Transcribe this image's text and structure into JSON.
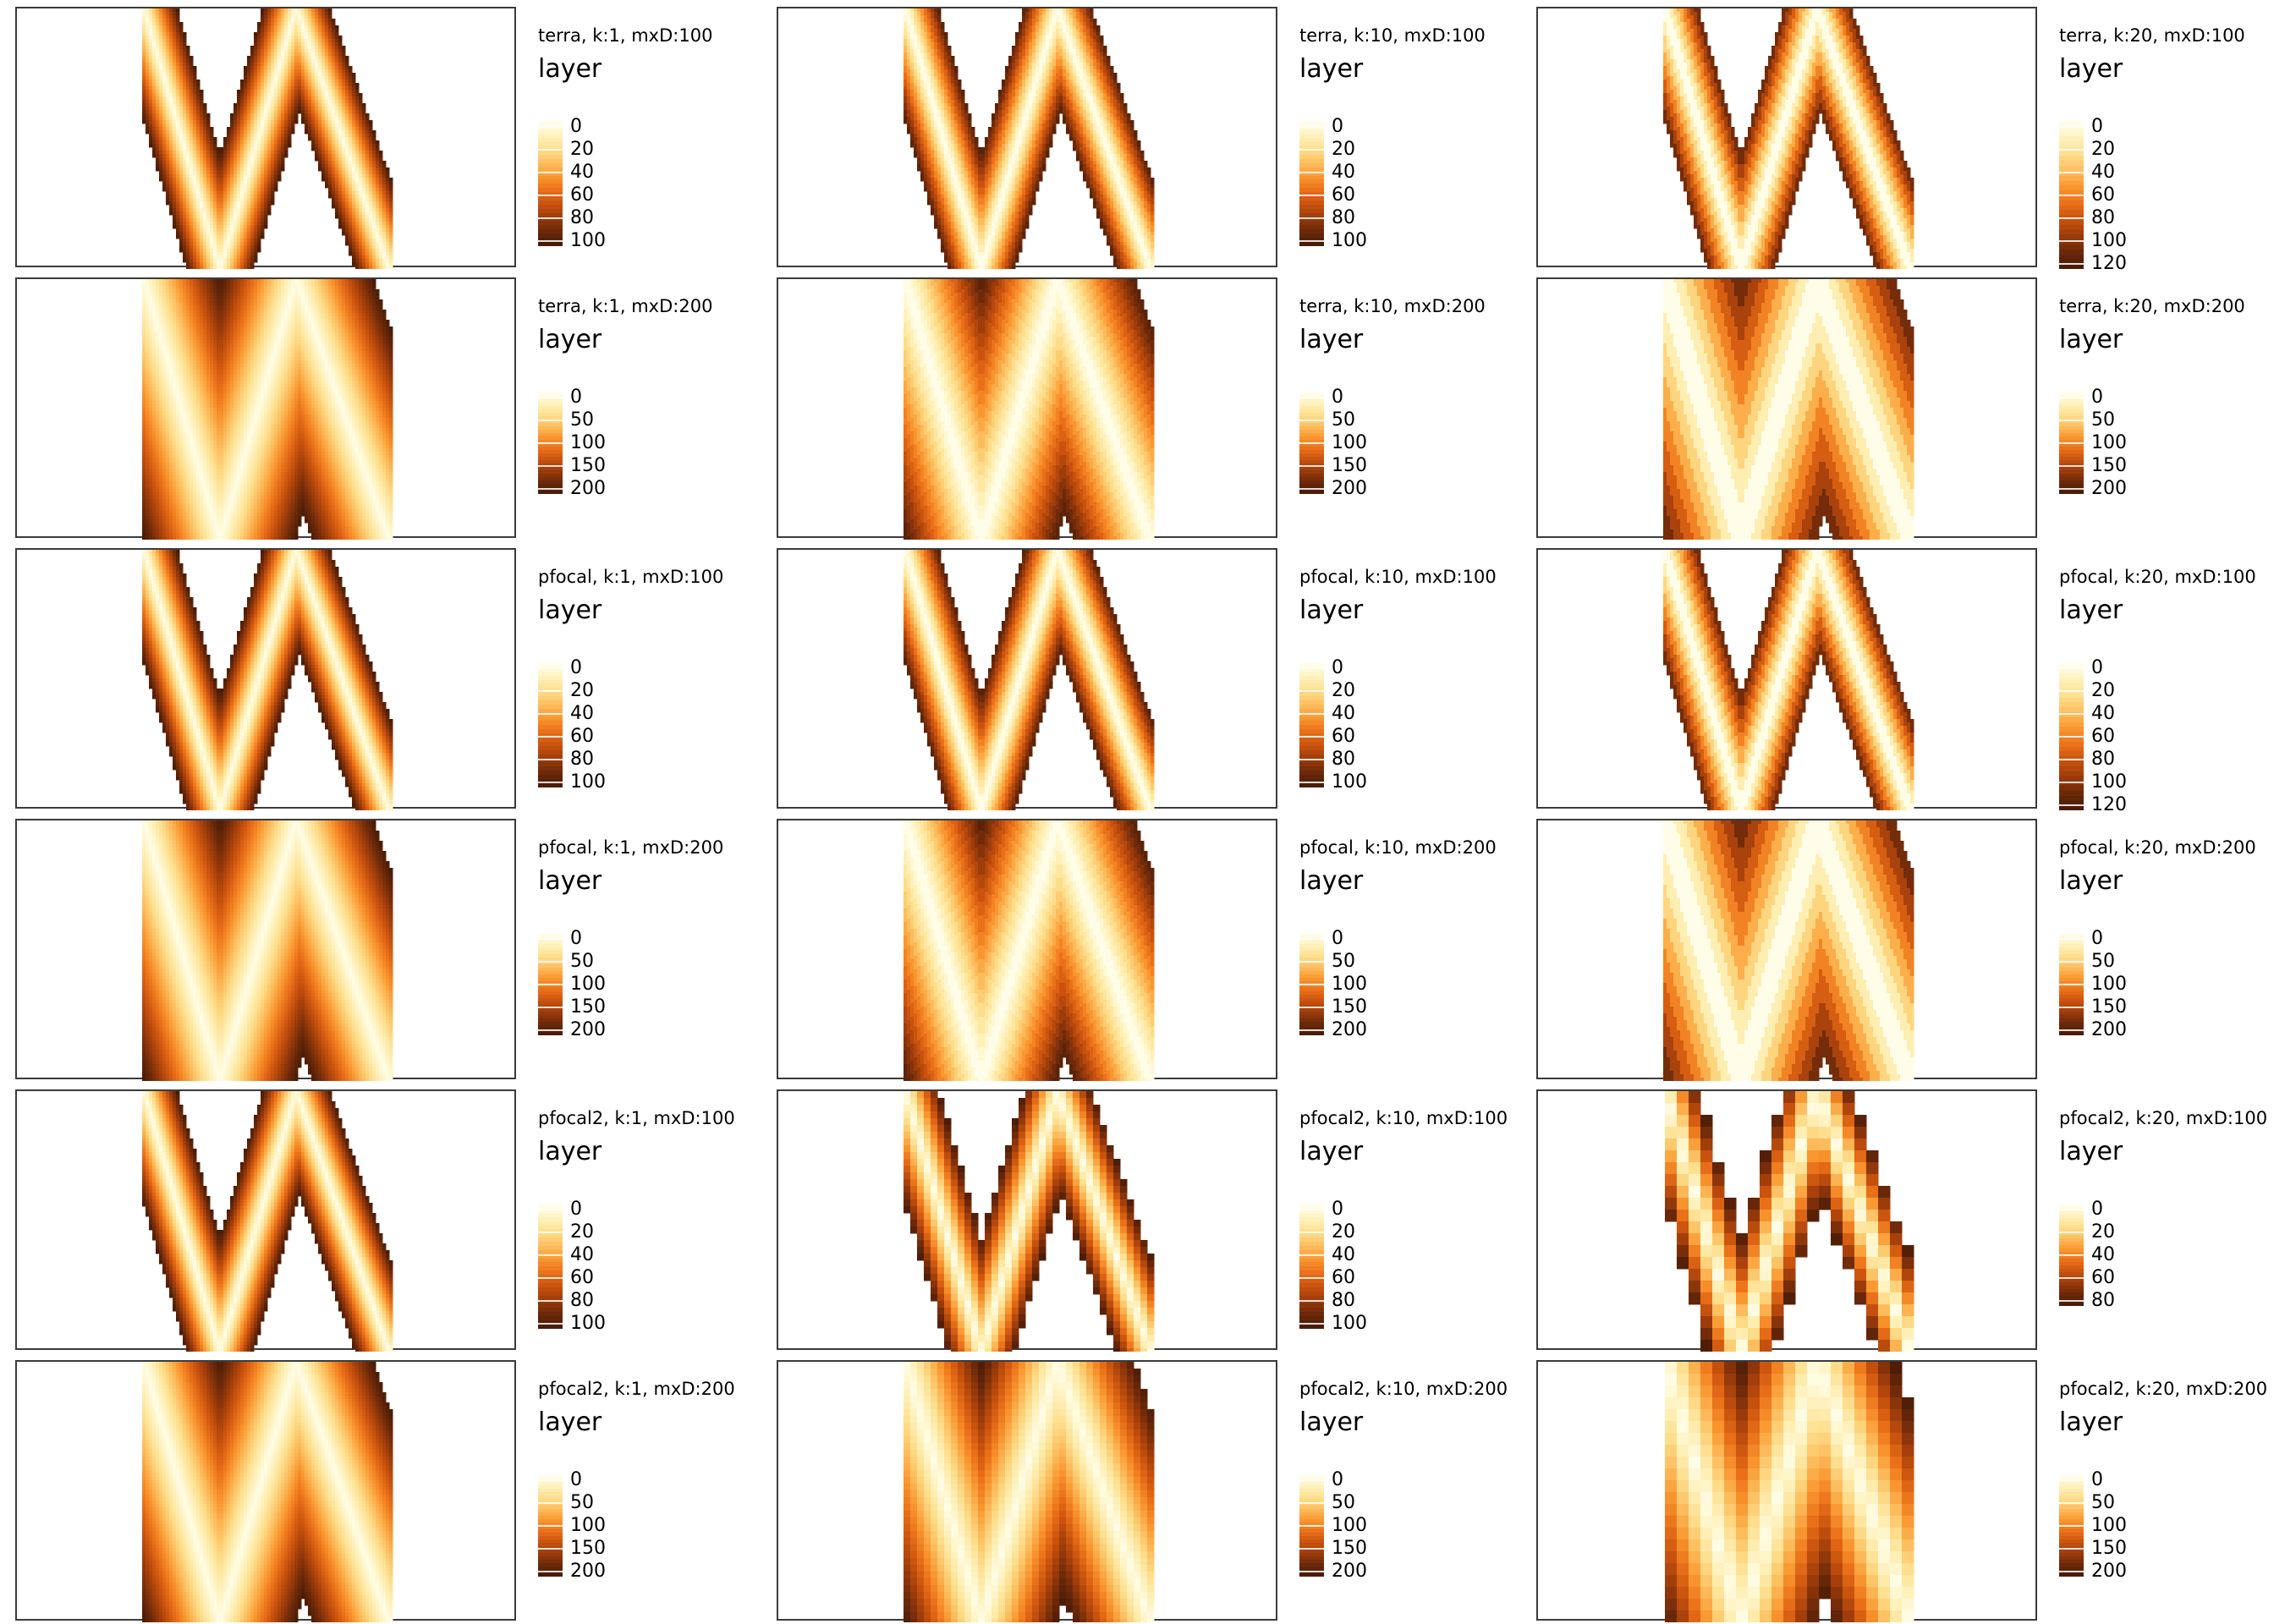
{
  "colors": {
    "palette": [
      "#fffde7",
      "#fff0b8",
      "#fedd8a",
      "#fdbc5c",
      "#f9962f",
      "#ea7019",
      "#c9530e",
      "#9e3c0b",
      "#6e2a0a",
      "#4a1c07"
    ],
    "frame": "#3b3b3b",
    "background": "#ffffff"
  },
  "chart_data": [
    {
      "type": "heatmap",
      "title": "terra, k:1, mxD:100",
      "legend_title": "layer",
      "legend_labels": [
        "0",
        "20",
        "40",
        "60",
        "80",
        "100"
      ],
      "value_range": [
        0,
        100
      ]
    },
    {
      "type": "heatmap",
      "title": "terra, k:10, mxD:100",
      "legend_title": "layer",
      "legend_labels": [
        "0",
        "20",
        "40",
        "60",
        "80",
        "100"
      ],
      "value_range": [
        0,
        100
      ]
    },
    {
      "type": "heatmap",
      "title": "terra, k:20, mxD:100",
      "legend_title": "layer",
      "legend_labels": [
        "0",
        "20",
        "40",
        "60",
        "80",
        "100",
        "120"
      ],
      "value_range": [
        0,
        120
      ]
    },
    {
      "type": "heatmap",
      "title": "terra, k:1, mxD:200",
      "legend_title": "layer",
      "legend_labels": [
        "0",
        "50",
        "100",
        "150",
        "200"
      ],
      "value_range": [
        0,
        200
      ]
    },
    {
      "type": "heatmap",
      "title": "terra, k:10, mxD:200",
      "legend_title": "layer",
      "legend_labels": [
        "0",
        "50",
        "100",
        "150",
        "200"
      ],
      "value_range": [
        0,
        200
      ]
    },
    {
      "type": "heatmap",
      "title": "terra, k:20, mxD:200",
      "legend_title": "layer",
      "legend_labels": [
        "0",
        "50",
        "100",
        "150",
        "200"
      ],
      "value_range": [
        0,
        200
      ]
    },
    {
      "type": "heatmap",
      "title": "pfocal, k:1, mxD:100",
      "legend_title": "layer",
      "legend_labels": [
        "0",
        "20",
        "40",
        "60",
        "80",
        "100"
      ],
      "value_range": [
        0,
        100
      ]
    },
    {
      "type": "heatmap",
      "title": "pfocal, k:10, mxD:100",
      "legend_title": "layer",
      "legend_labels": [
        "0",
        "20",
        "40",
        "60",
        "80",
        "100"
      ],
      "value_range": [
        0,
        100
      ]
    },
    {
      "type": "heatmap",
      "title": "pfocal, k:20, mxD:100",
      "legend_title": "layer",
      "legend_labels": [
        "0",
        "20",
        "40",
        "60",
        "80",
        "100",
        "120"
      ],
      "value_range": [
        0,
        120
      ]
    },
    {
      "type": "heatmap",
      "title": "pfocal, k:1, mxD:200",
      "legend_title": "layer",
      "legend_labels": [
        "0",
        "50",
        "100",
        "150",
        "200"
      ],
      "value_range": [
        0,
        200
      ]
    },
    {
      "type": "heatmap",
      "title": "pfocal, k:10, mxD:200",
      "legend_title": "layer",
      "legend_labels": [
        "0",
        "50",
        "100",
        "150",
        "200"
      ],
      "value_range": [
        0,
        200
      ]
    },
    {
      "type": "heatmap",
      "title": "pfocal, k:20, mxD:200",
      "legend_title": "layer",
      "legend_labels": [
        "0",
        "50",
        "100",
        "150",
        "200"
      ],
      "value_range": [
        0,
        200
      ]
    },
    {
      "type": "heatmap",
      "title": "pfocal2, k:1, mxD:100",
      "legend_title": "layer",
      "legend_labels": [
        "0",
        "20",
        "40",
        "60",
        "80",
        "100"
      ],
      "value_range": [
        0,
        100
      ]
    },
    {
      "type": "heatmap",
      "title": "pfocal2, k:10, mxD:100",
      "legend_title": "layer",
      "legend_labels": [
        "0",
        "20",
        "40",
        "60",
        "80",
        "100"
      ],
      "value_range": [
        0,
        100
      ]
    },
    {
      "type": "heatmap",
      "title": "pfocal2, k:20, mxD:100",
      "legend_title": "layer",
      "legend_labels": [
        "0",
        "20",
        "40",
        "60",
        "80"
      ],
      "value_range": [
        0,
        80
      ]
    },
    {
      "type": "heatmap",
      "title": "pfocal2, k:1, mxD:200",
      "legend_title": "layer",
      "legend_labels": [
        "0",
        "50",
        "100",
        "150",
        "200"
      ],
      "value_range": [
        0,
        200
      ]
    },
    {
      "type": "heatmap",
      "title": "pfocal2, k:10, mxD:200",
      "legend_title": "layer",
      "legend_labels": [
        "0",
        "50",
        "100",
        "150",
        "200"
      ],
      "value_range": [
        0,
        200
      ]
    },
    {
      "type": "heatmap",
      "title": "pfocal2, k:20, mxD:200",
      "legend_title": "layer",
      "legend_labels": [
        "0",
        "50",
        "100",
        "150",
        "200"
      ],
      "value_range": [
        0,
        200
      ]
    }
  ]
}
